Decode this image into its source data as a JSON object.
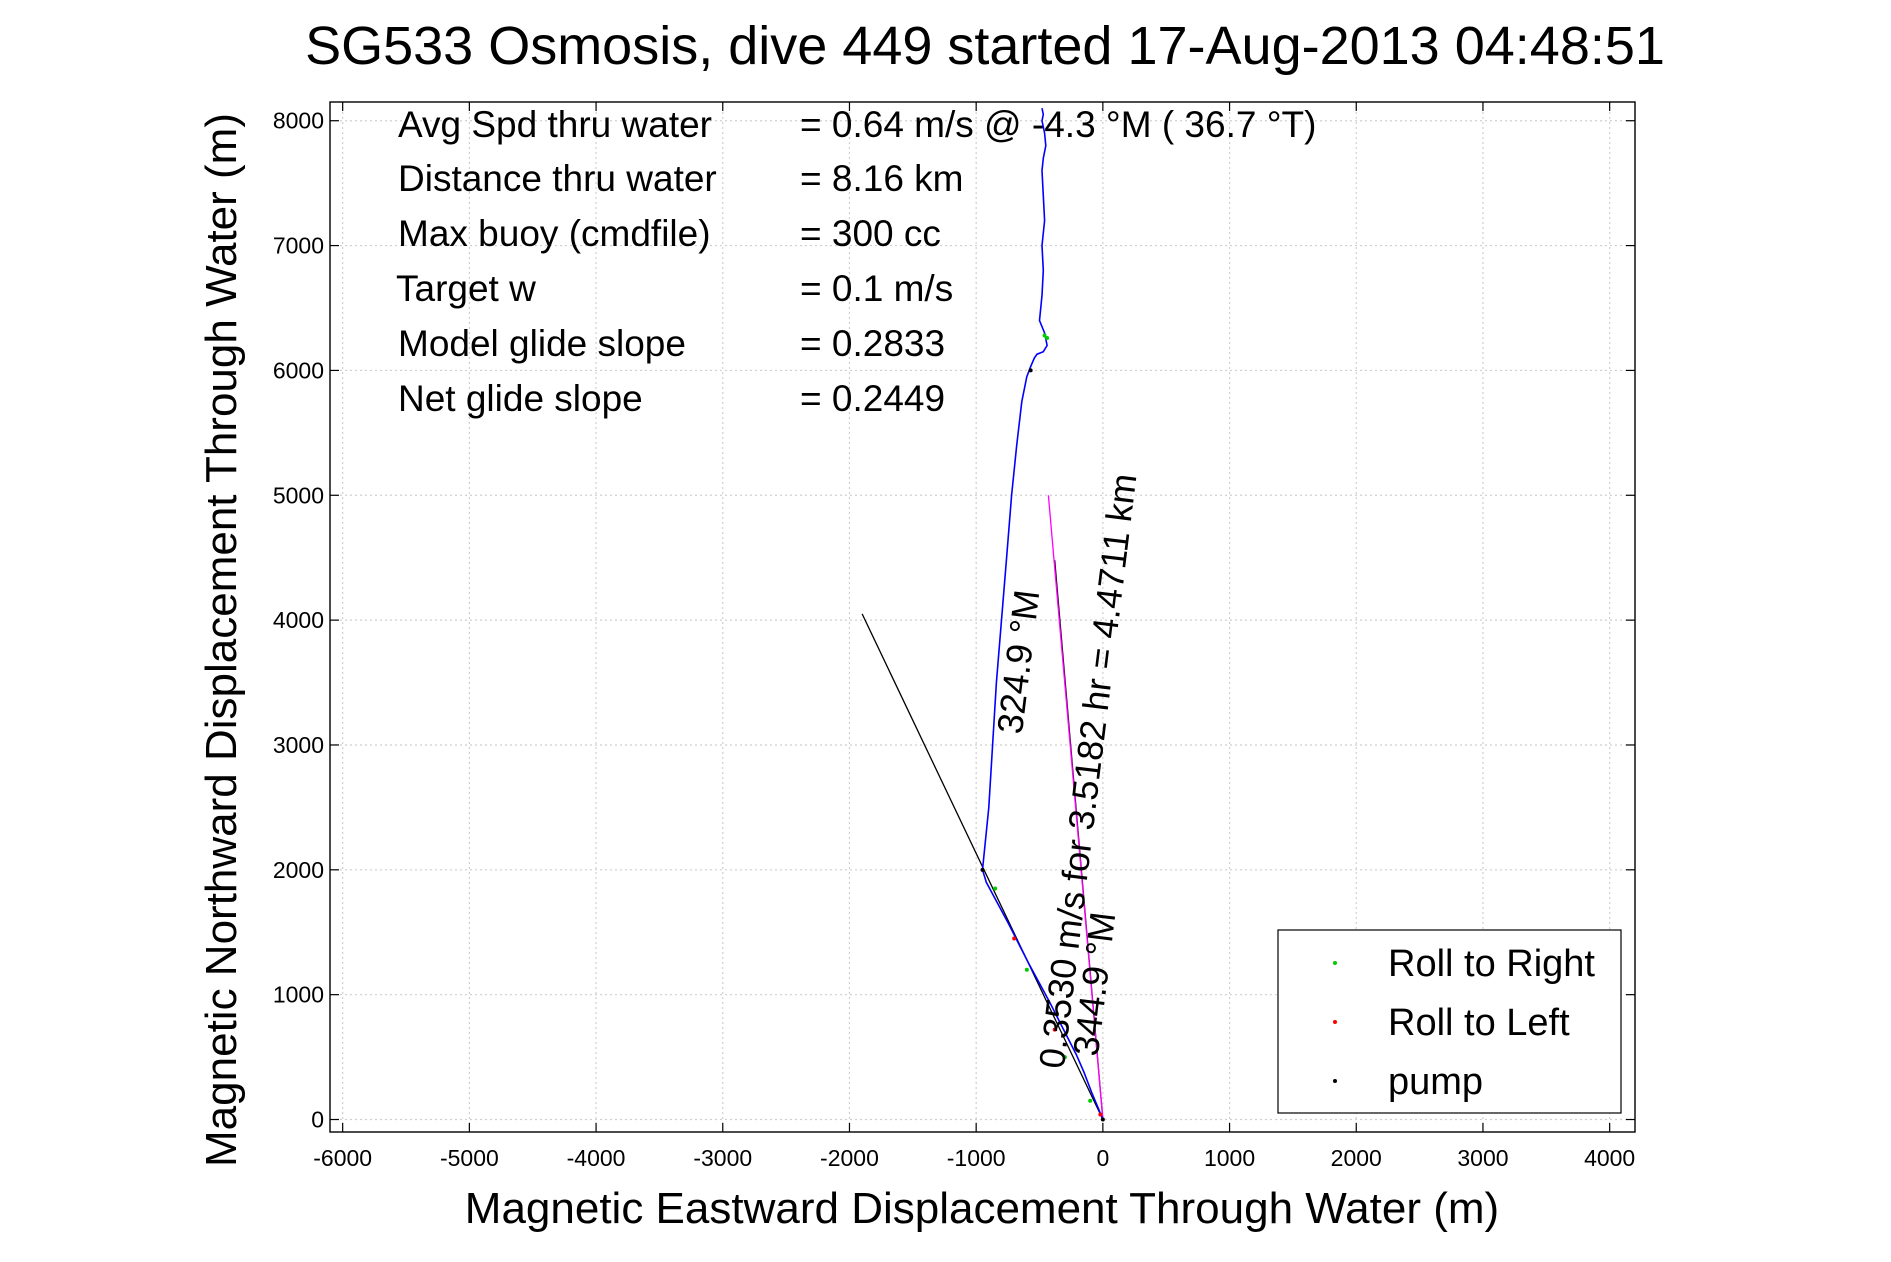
{
  "chart_data": {
    "type": "line",
    "title": "SG533 Osmosis, dive 449 started 17-Aug-2013 04:48:51",
    "xlabel": "Magnetic Eastward Displacement Through Water (m)",
    "ylabel": "Magnetic Northward Displacement Through Water (m)",
    "xlim": [
      -6100,
      4200
    ],
    "ylim": [
      -100,
      8150
    ],
    "xticks": [
      -6000,
      -5000,
      -4000,
      -3000,
      -2000,
      -1000,
      0,
      1000,
      2000,
      3000,
      4000
    ],
    "yticks": [
      0,
      1000,
      2000,
      3000,
      4000,
      5000,
      6000,
      7000,
      8000
    ],
    "xtick_labels": [
      "-6000",
      "-5000",
      "-4000",
      "-3000",
      "-2000",
      "-1000",
      "0",
      "1000",
      "2000",
      "3000",
      "4000"
    ],
    "ytick_labels": [
      "0",
      "1000",
      "2000",
      "3000",
      "4000",
      "5000",
      "6000",
      "7000",
      "8000"
    ],
    "grid": true,
    "legend_position": "bottom-right",
    "info_lines": [
      {
        "label": "Avg Spd thru water",
        "value": "=  0.64 m/s @  -4.3 °M ( 36.7 °T)"
      },
      {
        "label": "Distance thru water",
        "value": "=  8.16 km"
      },
      {
        "label": "Max buoy (cmdfile)",
        "value": "= 300 cc"
      },
      {
        "label": "Target w",
        "value": "= 0.1 m/s"
      },
      {
        "label": "Model glide slope",
        "value": "= 0.2833"
      },
      {
        "label": "Net glide slope",
        "value": "= 0.2449"
      }
    ],
    "track": {
      "color": "#0000ff",
      "x": [
        0,
        -40,
        -90,
        -150,
        -210,
        -280,
        -350,
        -420,
        -500,
        -580,
        -660,
        -740,
        -830,
        -920,
        -950,
        -900,
        -870,
        -840,
        -800,
        -760,
        -720,
        -680,
        -640,
        -600,
        -570,
        -540,
        -520,
        -470,
        -440,
        -460,
        -500,
        -480,
        -470,
        -480,
        -460,
        -470,
        -480,
        -470,
        -450,
        -460,
        -480,
        -470,
        -480
      ],
      "y": [
        0,
        100,
        220,
        380,
        520,
        660,
        800,
        940,
        1090,
        1240,
        1400,
        1560,
        1730,
        1900,
        2000,
        2500,
        3000,
        3500,
        4000,
        4500,
        5000,
        5400,
        5750,
        5950,
        6030,
        6100,
        6130,
        6150,
        6200,
        6300,
        6400,
        6600,
        6800,
        7000,
        7200,
        7400,
        7600,
        7700,
        7800,
        7900,
        8000,
        8050,
        8100
      ]
    },
    "series": [
      {
        "name": "Roll to Right",
        "color": "#00cc00",
        "marker": "dot",
        "x": [
          -460,
          -300,
          -600,
          -100,
          -850,
          -440
        ],
        "y": [
          6280,
          500,
          1200,
          150,
          1850,
          6260
        ]
      },
      {
        "name": "Roll to Left",
        "color": "#ff0000",
        "marker": "dot",
        "x": [
          -20,
          -700,
          -380
        ],
        "y": [
          40,
          1450,
          720
        ]
      },
      {
        "name": "pump",
        "color": "#000000",
        "marker": "dot",
        "x": [
          -950,
          -570,
          0
        ],
        "y": [
          2000,
          6000,
          0
        ]
      }
    ],
    "current_vector": {
      "color": "#ff00ff",
      "x": [
        0,
        -430
      ],
      "y": [
        0,
        5000
      ]
    },
    "heading_lines": [
      {
        "x": [
          0,
          -1900
        ],
        "y": [
          0,
          4050
        ]
      },
      {
        "x": [
          0,
          -380
        ],
        "y": [
          0,
          4480
        ]
      }
    ],
    "annotations": [
      {
        "text": "0.3530 m/s for 3.5182 hr = 4.4711 km",
        "x": -310,
        "y": 400,
        "rotation": -83
      },
      {
        "text": "344.9 °M",
        "x": -40,
        "y": 500,
        "rotation": -83
      },
      {
        "text": "324.9 °M",
        "x": -640,
        "y": 3080,
        "rotation": -83
      }
    ]
  }
}
